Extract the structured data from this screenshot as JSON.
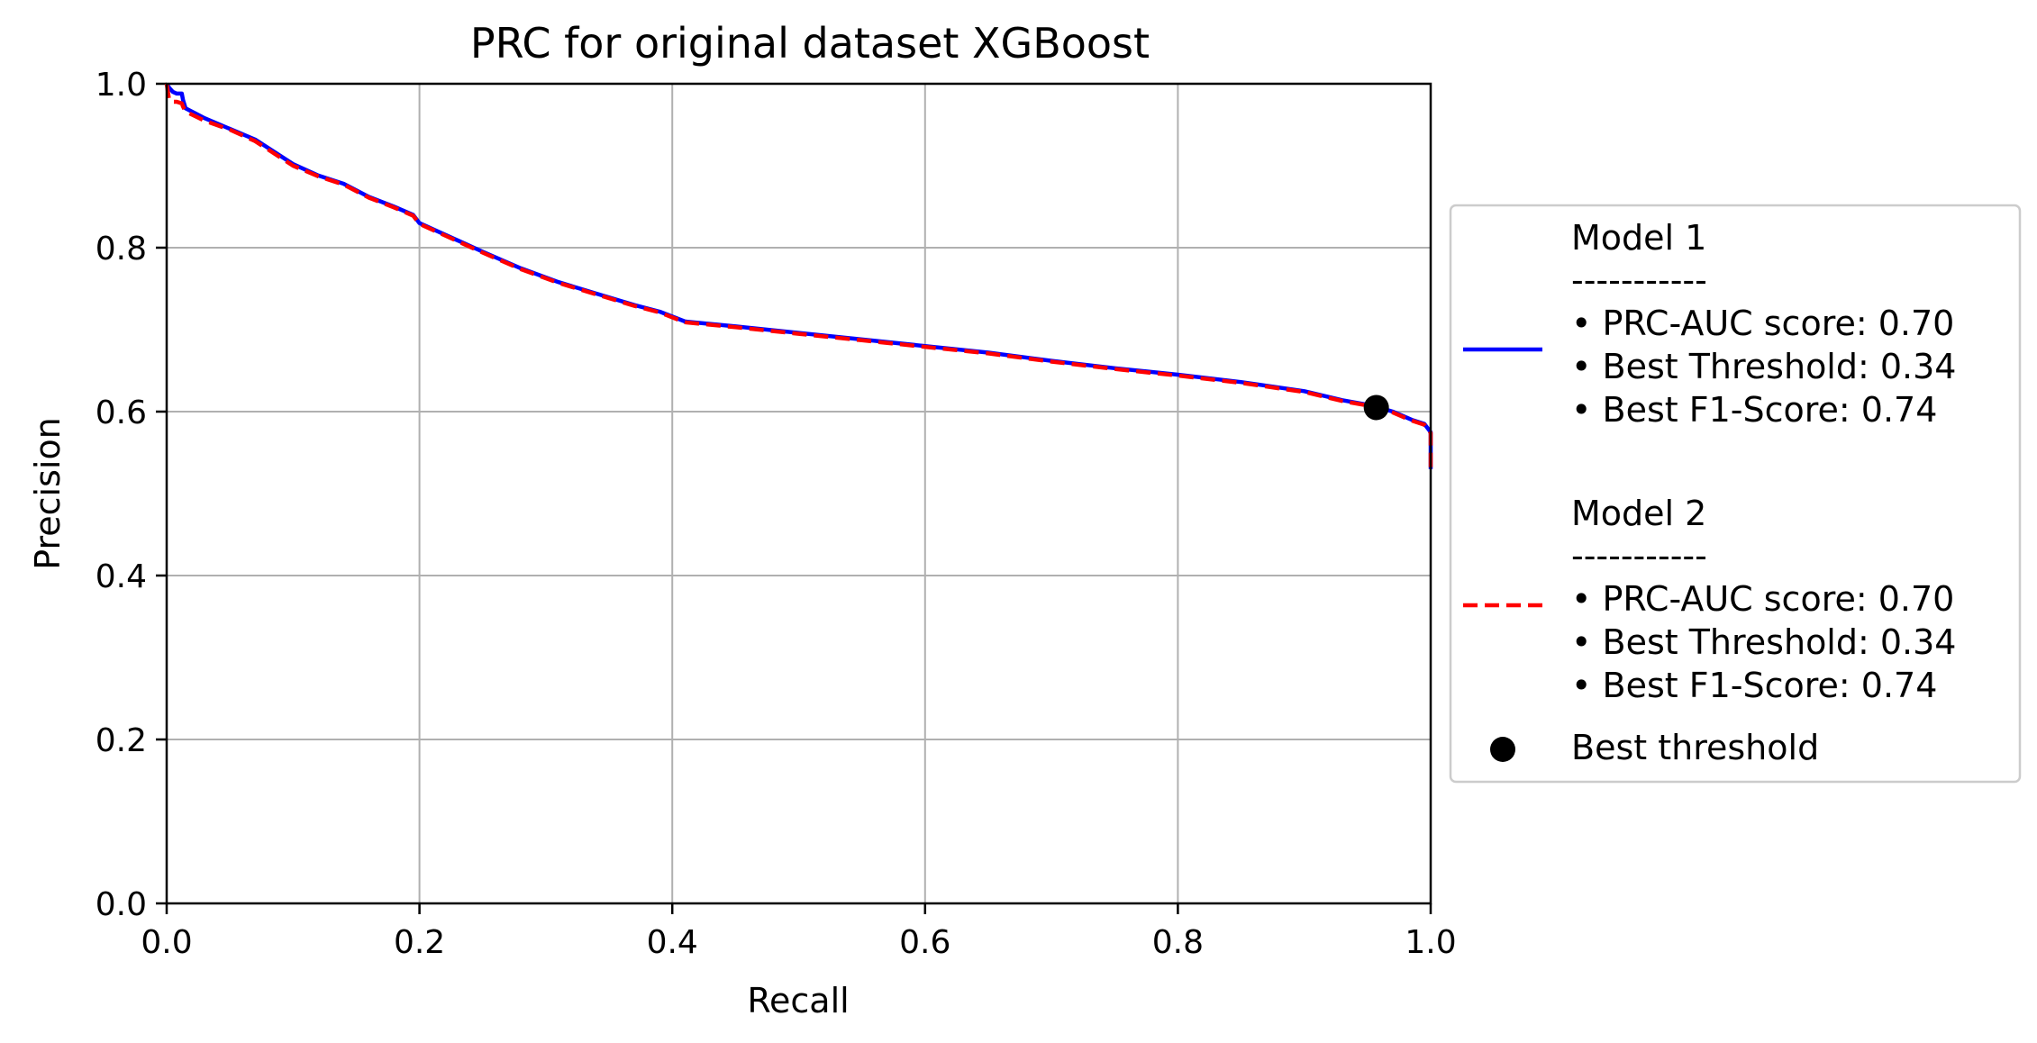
{
  "chart_data": {
    "type": "line",
    "title": "PRC for original dataset XGBoost",
    "xlabel": "Recall",
    "ylabel": "Precision",
    "xlim": [
      0.0,
      1.0
    ],
    "ylim": [
      0.0,
      1.0
    ],
    "xticks": [
      "0.0",
      "0.2",
      "0.4",
      "0.6",
      "0.8",
      "1.0"
    ],
    "yticks": [
      "0.0",
      "0.2",
      "0.4",
      "0.6",
      "0.8",
      "1.0"
    ],
    "grid": true,
    "legend_position": "outside-right",
    "series": [
      {
        "name": "Model 1",
        "color": "#0000ff",
        "style": "solid",
        "x": [
          0.0,
          0.002,
          0.005,
          0.008,
          0.012,
          0.013,
          0.015,
          0.03,
          0.05,
          0.07,
          0.1,
          0.12,
          0.14,
          0.16,
          0.18,
          0.195,
          0.2,
          0.25,
          0.28,
          0.31,
          0.34,
          0.37,
          0.39,
          0.41,
          0.45,
          0.5,
          0.55,
          0.6,
          0.65,
          0.7,
          0.75,
          0.8,
          0.85,
          0.9,
          0.93,
          0.955,
          0.97,
          0.985,
          0.995,
          1.0,
          1.0
        ],
        "y": [
          1.0,
          0.995,
          0.99,
          0.988,
          0.988,
          0.98,
          0.97,
          0.958,
          0.945,
          0.932,
          0.902,
          0.888,
          0.878,
          0.862,
          0.85,
          0.84,
          0.83,
          0.795,
          0.775,
          0.758,
          0.744,
          0.73,
          0.722,
          0.71,
          0.704,
          0.696,
          0.688,
          0.68,
          0.672,
          0.662,
          0.653,
          0.645,
          0.636,
          0.625,
          0.614,
          0.607,
          0.6,
          0.59,
          0.585,
          0.575,
          0.53
        ]
      },
      {
        "name": "Model 2",
        "color": "#ff0000",
        "style": "dashed",
        "x": [
          0.0,
          0.002,
          0.005,
          0.008,
          0.012,
          0.013,
          0.015,
          0.03,
          0.05,
          0.07,
          0.1,
          0.12,
          0.14,
          0.16,
          0.18,
          0.195,
          0.2,
          0.25,
          0.28,
          0.31,
          0.34,
          0.37,
          0.39,
          0.41,
          0.45,
          0.5,
          0.55,
          0.6,
          0.65,
          0.7,
          0.75,
          0.8,
          0.85,
          0.9,
          0.93,
          0.955,
          0.97,
          0.985,
          0.995,
          1.0,
          1.0
        ],
        "y": [
          1.0,
          0.98,
          0.978,
          0.978,
          0.976,
          0.972,
          0.966,
          0.955,
          0.944,
          0.93,
          0.9,
          0.887,
          0.877,
          0.861,
          0.849,
          0.839,
          0.829,
          0.794,
          0.774,
          0.757,
          0.743,
          0.729,
          0.721,
          0.709,
          0.703,
          0.695,
          0.687,
          0.679,
          0.671,
          0.661,
          0.652,
          0.644,
          0.635,
          0.624,
          0.613,
          0.606,
          0.599,
          0.589,
          0.584,
          0.574,
          0.53
        ]
      }
    ],
    "best_threshold_point": {
      "label": "Best threshold",
      "x": 0.957,
      "y": 0.605,
      "color": "#000000"
    },
    "legend": {
      "entries": [
        {
          "name": "Model 1",
          "separator": "-----------",
          "lines": [
            "• PRC-AUC score: 0.70",
            "• Best Threshold: 0.34",
            "• Best F1-Score: 0.74"
          ]
        },
        {
          "name": "Model 2",
          "separator": "-----------",
          "lines": [
            "• PRC-AUC score: 0.70",
            "• Best Threshold: 0.34",
            "• Best F1-Score: 0.74"
          ]
        }
      ],
      "marker_label": "Best threshold"
    }
  }
}
